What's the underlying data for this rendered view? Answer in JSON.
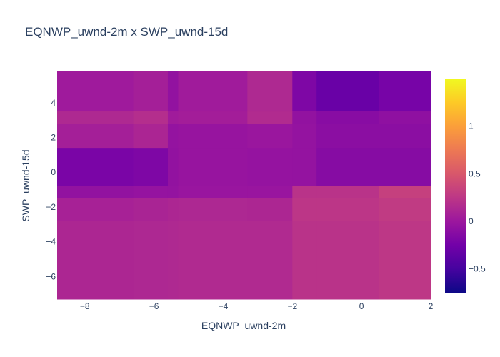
{
  "chart_data": {
    "type": "heatmap",
    "title": "EQNWP_uwnd-2m x SWP_uwnd-15d",
    "xlabel": "EQNWP_uwnd-2m",
    "ylabel": "SWP_uwnd-15d",
    "xlim": [
      -8.8,
      2.0
    ],
    "ylim": [
      -7.3,
      5.8
    ],
    "x_ticks": [
      -8,
      -6,
      -4,
      -2,
      0,
      2
    ],
    "x_tick_labels": [
      "−8",
      "−6",
      "−4",
      "−2",
      "0",
      "2"
    ],
    "y_ticks": [
      -6,
      -4,
      -2,
      0,
      2,
      4
    ],
    "y_tick_labels": [
      "−6",
      "−4",
      "−2",
      "0",
      "2",
      "4"
    ],
    "colorbar": {
      "zmin": -0.75,
      "zmax": 1.5,
      "ticks": [
        -0.5,
        0,
        0.5,
        1
      ],
      "tick_labels": [
        "−0.5",
        "0",
        "0.5",
        "1"
      ],
      "colorscale": [
        "#0d0887",
        "#46039f",
        "#7201a8",
        "#9c179e",
        "#bd3786",
        "#d8576b",
        "#ed7953",
        "#fb9f3a",
        "#fdca26",
        "#f0f921"
      ]
    },
    "x_edges": [
      -8.8,
      -6.6,
      -5.6,
      -5.3,
      -3.3,
      -2.0,
      -1.3,
      0.5,
      2.0
    ],
    "y_edges": [
      5.8,
      3.5,
      2.8,
      1.4,
      -0.8,
      -1.5,
      -2.8,
      -7.3
    ],
    "z": [
      [
        0.02,
        0.06,
        -0.06,
        0.03,
        0.14,
        -0.18,
        -0.3,
        -0.22
      ],
      [
        0.14,
        0.18,
        0.03,
        0.05,
        0.16,
        -0.06,
        -0.12,
        -0.08
      ],
      [
        0.06,
        0.11,
        -0.05,
        -0.03,
        -0.01,
        -0.05,
        -0.1,
        -0.1
      ],
      [
        -0.2,
        -0.18,
        -0.06,
        -0.03,
        -0.04,
        -0.05,
        -0.13,
        -0.13
      ],
      [
        -0.06,
        -0.04,
        -0.05,
        -0.02,
        -0.02,
        0.22,
        0.22,
        0.32
      ],
      [
        0.08,
        0.1,
        0.12,
        0.13,
        0.12,
        0.24,
        0.24,
        0.28
      ],
      [
        0.12,
        0.13,
        0.14,
        0.15,
        0.15,
        0.22,
        0.22,
        0.25
      ]
    ]
  }
}
